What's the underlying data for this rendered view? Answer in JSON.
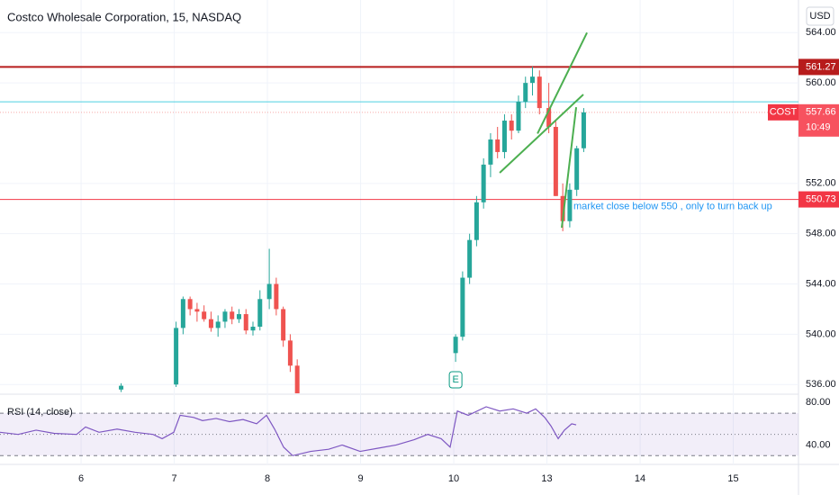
{
  "chart": {
    "title": "Costco Wholesale Corporation, 15, NASDAQ",
    "currency": "USD",
    "xlim": [
      -0.87,
      7.7
    ],
    "xticks": [
      {
        "value": 0,
        "label": "6"
      },
      {
        "value": 1,
        "label": "7"
      },
      {
        "value": 2,
        "label": "8"
      },
      {
        "value": 3,
        "label": "9"
      },
      {
        "value": 4,
        "label": "10"
      },
      {
        "value": 5,
        "label": "13"
      },
      {
        "value": 6,
        "label": "14"
      },
      {
        "value": 7,
        "label": "15"
      }
    ],
    "ylim": [
      535.3,
      566.6
    ],
    "yticks": [
      {
        "value": 564,
        "label": "564.00"
      },
      {
        "value": 560,
        "label": "560.00"
      },
      {
        "value": 552,
        "label": "552.00"
      },
      {
        "value": 548,
        "label": "548.00"
      },
      {
        "value": 544,
        "label": "544.00"
      },
      {
        "value": 540,
        "label": "540.00"
      },
      {
        "value": 536,
        "label": "536.00"
      }
    ],
    "candles": [
      {
        "x": 0.43,
        "open": 535.6,
        "high": 536.1,
        "low": 535.4,
        "close": 535.9
      },
      {
        "x": 1.02,
        "open": 536,
        "high": 541,
        "low": 535.8,
        "close": 540.5
      },
      {
        "x": 1.095,
        "open": 540.5,
        "high": 543,
        "low": 540,
        "close": 542.8
      },
      {
        "x": 1.17,
        "open": 542.8,
        "high": 543,
        "low": 541.5,
        "close": 542
      },
      {
        "x": 1.245,
        "open": 542,
        "high": 542.5,
        "low": 541,
        "close": 541.8
      },
      {
        "x": 1.32,
        "open": 541.8,
        "high": 542.3,
        "low": 541,
        "close": 541.2
      },
      {
        "x": 1.395,
        "open": 541.2,
        "high": 541.8,
        "low": 540.2,
        "close": 540.5
      },
      {
        "x": 1.47,
        "open": 540.5,
        "high": 541.5,
        "low": 539.8,
        "close": 541
      },
      {
        "x": 1.545,
        "open": 541,
        "high": 542,
        "low": 540.5,
        "close": 541.8
      },
      {
        "x": 1.62,
        "open": 541.8,
        "high": 542.2,
        "low": 540.8,
        "close": 541.2
      },
      {
        "x": 1.695,
        "open": 541.2,
        "high": 542,
        "low": 540.9,
        "close": 541.6
      },
      {
        "x": 1.77,
        "open": 541.6,
        "high": 542,
        "low": 540,
        "close": 540.3
      },
      {
        "x": 1.845,
        "open": 540.3,
        "high": 541,
        "low": 539.9,
        "close": 540.6
      },
      {
        "x": 1.92,
        "open": 540.6,
        "high": 543.5,
        "low": 540.3,
        "close": 542.8
      },
      {
        "x": 2.02,
        "open": 542.8,
        "high": 546.8,
        "low": 542,
        "close": 544
      },
      {
        "x": 2.095,
        "open": 544,
        "high": 544.5,
        "low": 541.5,
        "close": 542
      },
      {
        "x": 2.17,
        "open": 542,
        "high": 542.2,
        "low": 539,
        "close": 539.5
      },
      {
        "x": 2.245,
        "open": 539.5,
        "high": 540,
        "low": 537,
        "close": 537.5
      },
      {
        "x": 2.32,
        "open": 537.5,
        "high": 538,
        "low": 535,
        "close": 535.2
      },
      {
        "x": 4.02,
        "open": 538.5,
        "high": 540,
        "low": 537.8,
        "close": 539.8
      },
      {
        "x": 4.095,
        "open": 539.8,
        "high": 545,
        "low": 539.5,
        "close": 544.5
      },
      {
        "x": 4.17,
        "open": 544.5,
        "high": 548,
        "low": 544,
        "close": 547.5
      },
      {
        "x": 4.245,
        "open": 547.5,
        "high": 551,
        "low": 547,
        "close": 550.5
      },
      {
        "x": 4.32,
        "open": 550.5,
        "high": 554,
        "low": 550,
        "close": 553.5
      },
      {
        "x": 4.395,
        "open": 553.5,
        "high": 556,
        "low": 552.5,
        "close": 555.5
      },
      {
        "x": 4.47,
        "open": 555.5,
        "high": 556.5,
        "low": 554,
        "close": 554.5
      },
      {
        "x": 4.545,
        "open": 554.5,
        "high": 557.5,
        "low": 554,
        "close": 557
      },
      {
        "x": 4.62,
        "open": 557,
        "high": 557.5,
        "low": 555.5,
        "close": 556.2
      },
      {
        "x": 4.695,
        "open": 556.2,
        "high": 559,
        "low": 556,
        "close": 558.5
      },
      {
        "x": 4.77,
        "open": 558.5,
        "high": 560.5,
        "low": 558,
        "close": 560
      },
      {
        "x": 4.845,
        "open": 560,
        "high": 561.3,
        "low": 559,
        "close": 560.5
      },
      {
        "x": 4.92,
        "open": 560.5,
        "high": 561,
        "low": 557.5,
        "close": 558
      },
      {
        "x": 5.02,
        "open": 558,
        "high": 560,
        "low": 556,
        "close": 556.5
      },
      {
        "x": 5.095,
        "open": 556.5,
        "high": 557,
        "low": 551,
        "close": 551
      },
      {
        "x": 5.17,
        "open": 551,
        "high": 552,
        "low": 548.2,
        "close": 549
      },
      {
        "x": 5.245,
        "open": 549,
        "high": 552,
        "low": 548.5,
        "close": 551.5
      },
      {
        "x": 5.32,
        "open": 551.5,
        "high": 555,
        "low": 551,
        "close": 554.8
      },
      {
        "x": 5.395,
        "open": 554.8,
        "high": 558,
        "low": 554.5,
        "close": 557.66
      }
    ],
    "levels": [
      {
        "price": 561.27,
        "color": "#b71c1c"
      },
      {
        "price": 550.73,
        "color": "#f23645"
      }
    ],
    "support_line": {
      "price": 558.5,
      "color": "#4dd0e1"
    },
    "last": {
      "symbol": "COST",
      "price": 557.66,
      "countdown": "10:49"
    },
    "trendlines": [
      {
        "x1": 4.493,
        "y1": 552.85,
        "x2": 5.391,
        "y2": 559.08
      },
      {
        "x1": 4.899,
        "y1": 555.97,
        "x2": 5.43,
        "y2": 564
      },
      {
        "x1": 5.159,
        "y1": 548.48,
        "x2": 5.314,
        "y2": 558.07
      }
    ],
    "annotation": "market close below 550 , only to turn back up",
    "event_marker": {
      "x": 4.02,
      "label": "E"
    },
    "rsi": {
      "title": "RSI (14, close)",
      "ylim": [
        26,
        87
      ],
      "yticks": [
        {
          "value": 80,
          "label": "80.00"
        },
        {
          "value": 40,
          "label": "40.00"
        }
      ],
      "levels": [
        30,
        50,
        70
      ],
      "x": [
        -0.87,
        -0.676,
        -0.483,
        -0.29,
        -0.048,
        0.048,
        0.193,
        0.386,
        0.58,
        0.773,
        0.87,
        0.995,
        1.063,
        1.208,
        1.304,
        1.449,
        1.594,
        1.739,
        1.884,
        1.99,
        2.077,
        2.174,
        2.271,
        2.464,
        2.657,
        2.802,
        2.995,
        3.188,
        3.382,
        3.575,
        3.72,
        3.865,
        3.961,
        4.039,
        4.155,
        4.348,
        4.493,
        4.638,
        4.783,
        4.879,
        4.976,
        5.043,
        5.121,
        5.188,
        5.266,
        5.314
      ],
      "values": [
        52,
        50,
        54,
        51,
        50,
        57,
        52,
        55,
        52,
        50,
        46,
        52,
        68,
        66,
        63,
        65,
        62,
        64,
        60,
        68,
        55,
        38,
        30,
        34,
        36,
        40,
        34,
        37,
        40,
        45,
        50,
        46,
        38,
        72,
        68,
        76,
        72,
        74,
        70,
        74,
        66,
        58,
        46,
        54,
        60,
        59
      ]
    }
  }
}
